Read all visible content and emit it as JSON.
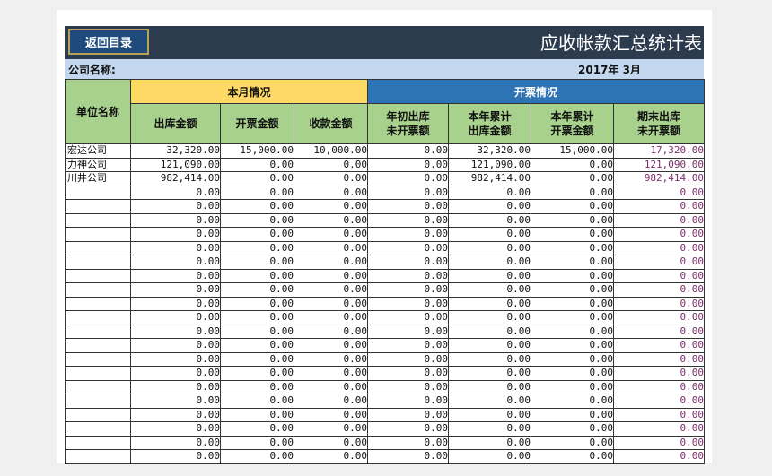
{
  "header": {
    "back_label": "返回目录",
    "title": "应收帐款汇总统计表"
  },
  "company": {
    "label": "公司名称:",
    "date": "2017年 3月"
  },
  "table": {
    "unit_header": "单位名称",
    "group_month": "本月情况",
    "group_invoice": "开票情况",
    "columns": [
      "出库金额",
      "开票金额",
      "收款金额",
      "年初出库\n未开票额",
      "本年累计\n出库金额",
      "本年累计\n开票金额",
      "期末出库\n未开票额"
    ],
    "rows": [
      {
        "name": "宏达公司",
        "values": [
          "32,320.00",
          "15,000.00",
          "10,000.00",
          "0.00",
          "32,320.00",
          "15,000.00",
          "17,320.00"
        ]
      },
      {
        "name": "力神公司",
        "values": [
          "121,090.00",
          "0.00",
          "0.00",
          "0.00",
          "121,090.00",
          "0.00",
          "121,090.00"
        ]
      },
      {
        "name": "川井公司",
        "values": [
          "982,414.00",
          "0.00",
          "0.00",
          "0.00",
          "982,414.00",
          "0.00",
          "982,414.00"
        ]
      },
      {
        "name": "",
        "values": [
          "0.00",
          "0.00",
          "0.00",
          "0.00",
          "0.00",
          "0.00",
          "0.00"
        ]
      },
      {
        "name": "",
        "values": [
          "0.00",
          "0.00",
          "0.00",
          "0.00",
          "0.00",
          "0.00",
          "0.00"
        ]
      },
      {
        "name": "",
        "values": [
          "0.00",
          "0.00",
          "0.00",
          "0.00",
          "0.00",
          "0.00",
          "0.00"
        ]
      },
      {
        "name": "",
        "values": [
          "0.00",
          "0.00",
          "0.00",
          "0.00",
          "0.00",
          "0.00",
          "0.00"
        ]
      },
      {
        "name": "",
        "values": [
          "0.00",
          "0.00",
          "0.00",
          "0.00",
          "0.00",
          "0.00",
          "0.00"
        ]
      },
      {
        "name": "",
        "values": [
          "0.00",
          "0.00",
          "0.00",
          "0.00",
          "0.00",
          "0.00",
          "0.00"
        ]
      },
      {
        "name": "",
        "values": [
          "0.00",
          "0.00",
          "0.00",
          "0.00",
          "0.00",
          "0.00",
          "0.00"
        ]
      },
      {
        "name": "",
        "values": [
          "0.00",
          "0.00",
          "0.00",
          "0.00",
          "0.00",
          "0.00",
          "0.00"
        ]
      },
      {
        "name": "",
        "values": [
          "0.00",
          "0.00",
          "0.00",
          "0.00",
          "0.00",
          "0.00",
          "0.00"
        ]
      },
      {
        "name": "",
        "values": [
          "0.00",
          "0.00",
          "0.00",
          "0.00",
          "0.00",
          "0.00",
          "0.00"
        ]
      },
      {
        "name": "",
        "values": [
          "0.00",
          "0.00",
          "0.00",
          "0.00",
          "0.00",
          "0.00",
          "0.00"
        ]
      },
      {
        "name": "",
        "values": [
          "0.00",
          "0.00",
          "0.00",
          "0.00",
          "0.00",
          "0.00",
          "0.00"
        ]
      },
      {
        "name": "",
        "values": [
          "0.00",
          "0.00",
          "0.00",
          "0.00",
          "0.00",
          "0.00",
          "0.00"
        ]
      },
      {
        "name": "",
        "values": [
          "0.00",
          "0.00",
          "0.00",
          "0.00",
          "0.00",
          "0.00",
          "0.00"
        ]
      },
      {
        "name": "",
        "values": [
          "0.00",
          "0.00",
          "0.00",
          "0.00",
          "0.00",
          "0.00",
          "0.00"
        ]
      },
      {
        "name": "",
        "values": [
          "0.00",
          "0.00",
          "0.00",
          "0.00",
          "0.00",
          "0.00",
          "0.00"
        ]
      },
      {
        "name": "",
        "values": [
          "0.00",
          "0.00",
          "0.00",
          "0.00",
          "0.00",
          "0.00",
          "0.00"
        ]
      },
      {
        "name": "",
        "values": [
          "0.00",
          "0.00",
          "0.00",
          "0.00",
          "0.00",
          "0.00",
          "0.00"
        ]
      },
      {
        "name": "",
        "values": [
          "0.00",
          "0.00",
          "0.00",
          "0.00",
          "0.00",
          "0.00",
          "0.00"
        ]
      },
      {
        "name": "",
        "values": [
          "0.00",
          "0.00",
          "0.00",
          "0.00",
          "0.00",
          "0.00",
          "0.00"
        ]
      }
    ]
  }
}
